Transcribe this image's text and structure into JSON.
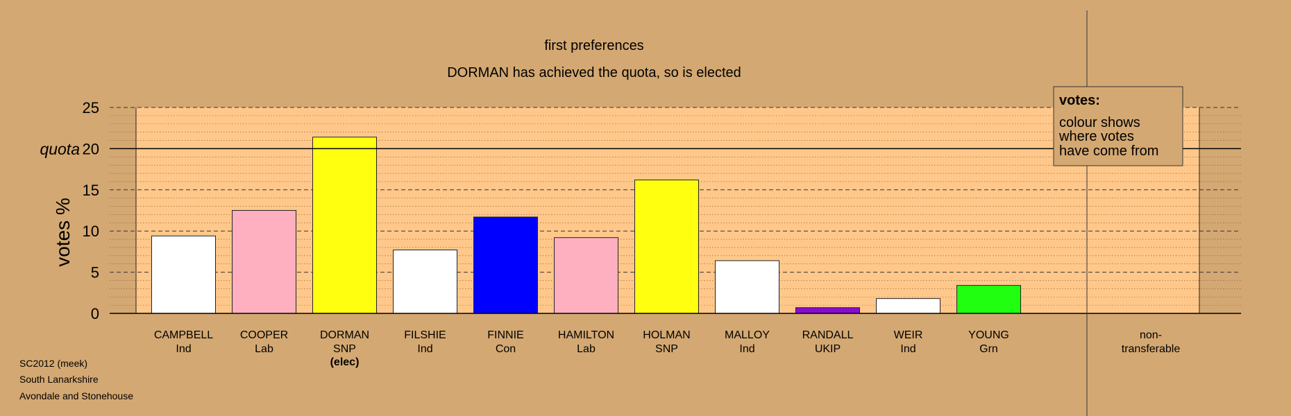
{
  "chart_data": {
    "type": "bar",
    "title": "first preferences",
    "subtitle": "DORMAN has achieved the quota, so is elected",
    "ylabel": "votes %",
    "ylim": [
      0,
      25
    ],
    "yticks": [
      0,
      5,
      10,
      15,
      20,
      25
    ],
    "quota": 20,
    "quota_label": "quota",
    "categories": [
      {
        "name": "CAMPBELL",
        "party": "Ind",
        "status": "",
        "value": 9.4,
        "color": "#ffffff"
      },
      {
        "name": "COOPER",
        "party": "Lab",
        "status": "",
        "value": 12.5,
        "color": "#ffb0c0"
      },
      {
        "name": "DORMAN",
        "party": "SNP",
        "status": "(elec)",
        "value": 21.4,
        "color": "#ffff0f"
      },
      {
        "name": "FILSHIE",
        "party": "Ind",
        "status": "",
        "value": 7.7,
        "color": "#ffffff"
      },
      {
        "name": "FINNIE",
        "party": "Con",
        "status": "",
        "value": 11.7,
        "color": "#0000ff"
      },
      {
        "name": "HAMILTON",
        "party": "Lab",
        "status": "",
        "value": 9.2,
        "color": "#ffb0c0"
      },
      {
        "name": "HOLMAN",
        "party": "SNP",
        "status": "",
        "value": 16.2,
        "color": "#ffff0f"
      },
      {
        "name": "MALLOY",
        "party": "Ind",
        "status": "",
        "value": 6.4,
        "color": "#ffffff"
      },
      {
        "name": "RANDALL",
        "party": "UKIP",
        "status": "",
        "value": 0.7,
        "color": "#8a0ad0"
      },
      {
        "name": "WEIR",
        "party": "Ind",
        "status": "",
        "value": 1.8,
        "color": "#ffffff"
      },
      {
        "name": "YOUNG",
        "party": "Grn",
        "status": "",
        "value": 3.4,
        "color": "#20ff10"
      }
    ],
    "nontransferable": {
      "line1": "non-",
      "line2": "transferable"
    },
    "legend": {
      "title": "votes:",
      "lines": [
        "colour shows",
        "where votes",
        "have come from"
      ]
    }
  },
  "footer": {
    "lines": [
      "SC2012 (meek)",
      "South Lanarkshire",
      "Avondale and Stonehouse"
    ]
  },
  "colors": {
    "background": "#d4a872",
    "plot_area": "#ffc88a",
    "legend_bg": "#d4a872"
  }
}
